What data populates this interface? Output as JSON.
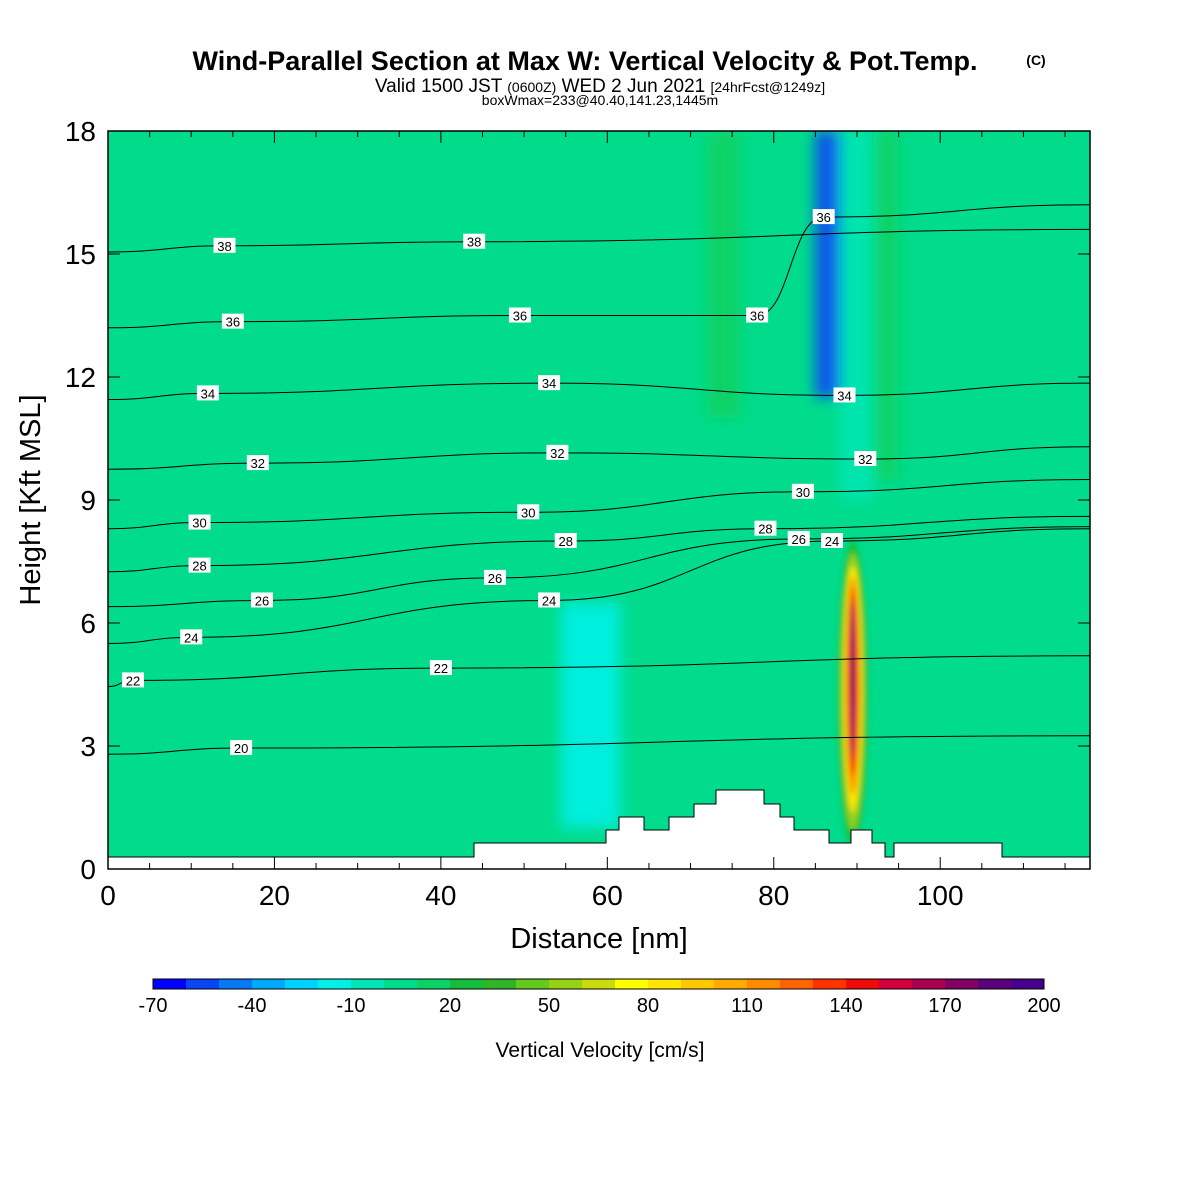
{
  "header": {
    "title": "Wind-Parallel Section at Max W: Vertical Velocity & Pot.Temp.",
    "title_mark": "(C)",
    "subtitle_a": "Valid 1500 JST",
    "subtitle_b": "(0600Z)",
    "subtitle_c": "WED 2 Jun 2021",
    "subtitle_d": "[24hrFcst@1249z]",
    "subtitle2": "boxWmax=233@40.40,141.23,1445m"
  },
  "chart_data": {
    "type": "heatmap",
    "title": "Wind-Parallel Section at Max W: Vertical Velocity & Pot.Temp.",
    "xlabel": "Distance [nm]",
    "ylabel": "Height [Kft MSL]",
    "xlim": [
      0,
      118
    ],
    "ylim": [
      0,
      18
    ],
    "x_ticks": [
      0,
      20,
      40,
      60,
      80,
      100
    ],
    "y_ticks": [
      0,
      3,
      6,
      9,
      12,
      15,
      18
    ],
    "colorbar": {
      "title": "Vertical Velocity [cm/s]",
      "tick_labels": [
        "-70",
        "-40",
        "-10",
        "20",
        "50",
        "80",
        "110",
        "140",
        "170",
        "200"
      ],
      "levels_min": -70,
      "levels_step": 10,
      "colors": [
        "#0000ff",
        "#0a46f5",
        "#0a78f5",
        "#00aaff",
        "#00d2ff",
        "#00f0e6",
        "#00e6b4",
        "#00dc8c",
        "#0ad264",
        "#14be3c",
        "#32b428",
        "#64c81e",
        "#96d214",
        "#c8dc0a",
        "#ffff00",
        "#ffe600",
        "#ffc800",
        "#ffaa00",
        "#ff8c00",
        "#ff6400",
        "#ff3200",
        "#f00a0a",
        "#d2003c",
        "#aa0050",
        "#820064",
        "#5a0078",
        "#46008c"
      ]
    },
    "background_color": "#00dc8c",
    "vertical_velocity_features": [
      {
        "kind": "updraft-core",
        "x": 89.5,
        "y_bottom": 0.5,
        "y_top": 8.0,
        "max_value": 233
      },
      {
        "kind": "downdraft-column",
        "x": 86.5,
        "y_bottom": 11.5,
        "y_top": 18,
        "min_value": -60
      },
      {
        "kind": "weak-upward-column",
        "x": 74,
        "y_bottom": 11,
        "y_top": 18,
        "value": 15
      },
      {
        "kind": "weak-upward-column",
        "x": 93,
        "y_bottom": 9.5,
        "y_top": 18,
        "value": 15
      },
      {
        "kind": "weak-downward-column",
        "x": 90,
        "y_bottom": 9,
        "y_top": 18,
        "value": -10
      },
      {
        "kind": "low-level-downward-region",
        "x": 58,
        "y_bottom": 1,
        "y_top": 6.5,
        "value": -20
      }
    ],
    "potential_temperature_labels": [
      {
        "text": "38",
        "x": 14,
        "y": 15.2
      },
      {
        "text": "38",
        "x": 44,
        "y": 15.3
      },
      {
        "text": "36",
        "x": 15,
        "y": 13.35
      },
      {
        "text": "36",
        "x": 49.5,
        "y": 13.5
      },
      {
        "text": "36",
        "x": 78,
        "y": 13.5
      },
      {
        "text": "36",
        "x": 86,
        "y": 15.9
      },
      {
        "text": "34",
        "x": 12,
        "y": 11.6
      },
      {
        "text": "34",
        "x": 53,
        "y": 11.85
      },
      {
        "text": "34",
        "x": 88.5,
        "y": 11.55
      },
      {
        "text": "32",
        "x": 18,
        "y": 9.9
      },
      {
        "text": "32",
        "x": 54,
        "y": 10.15
      },
      {
        "text": "32",
        "x": 91,
        "y": 10.0
      },
      {
        "text": "30",
        "x": 11,
        "y": 8.45
      },
      {
        "text": "30",
        "x": 50.5,
        "y": 8.7
      },
      {
        "text": "30",
        "x": 83.5,
        "y": 9.2
      },
      {
        "text": "28",
        "x": 11,
        "y": 7.4
      },
      {
        "text": "28",
        "x": 55,
        "y": 8.0
      },
      {
        "text": "28",
        "x": 79,
        "y": 8.3
      },
      {
        "text": "26",
        "x": 18.5,
        "y": 6.55
      },
      {
        "text": "26",
        "x": 46.5,
        "y": 7.1
      },
      {
        "text": "26",
        "x": 83,
        "y": 8.05
      },
      {
        "text": "24",
        "x": 10,
        "y": 5.65
      },
      {
        "text": "24",
        "x": 53,
        "y": 6.55
      },
      {
        "text": "24",
        "x": 87,
        "y": 8.0
      },
      {
        "text": "22",
        "x": 3,
        "y": 4.6
      },
      {
        "text": "22",
        "x": 40,
        "y": 4.9
      },
      {
        "text": "20",
        "x": 16,
        "y": 2.95
      }
    ]
  }
}
